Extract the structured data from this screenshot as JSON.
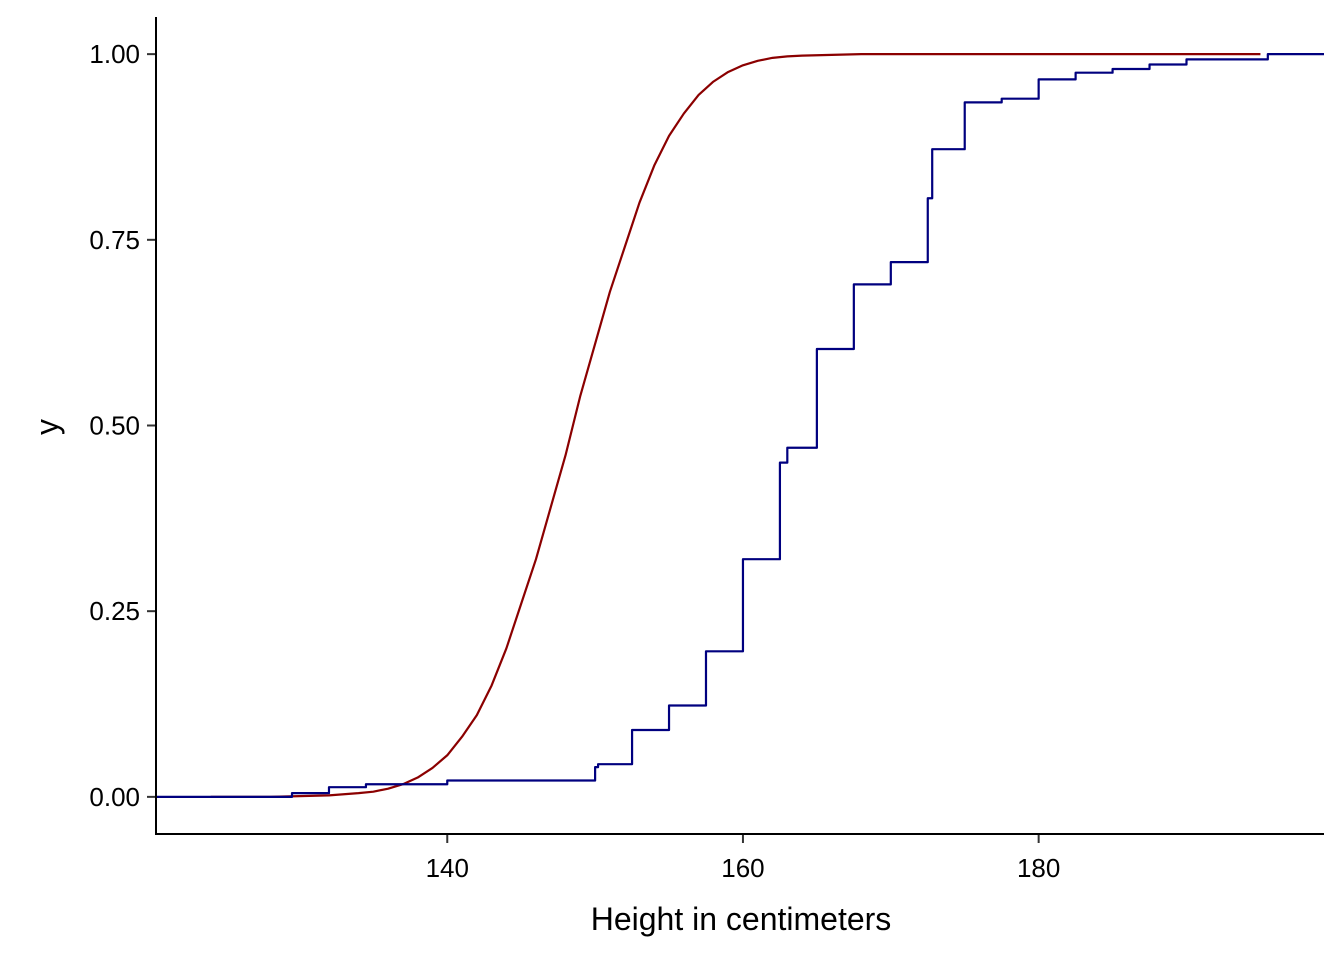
{
  "chart_data": {
    "type": "line",
    "title": "",
    "xlabel": "Height in centimeters",
    "ylabel": "y",
    "xlim": [
      120.3,
      199.3
    ],
    "ylim": [
      -0.05,
      1.05
    ],
    "x_ticks": [
      140,
      160,
      180
    ],
    "x_tick_labels": [
      "140",
      "160",
      "180"
    ],
    "y_ticks": [
      0,
      0.25,
      0.5,
      0.75,
      1
    ],
    "y_tick_labels": [
      "0.00",
      "0.25",
      "0.50",
      "0.75",
      "1.00"
    ],
    "grid": false,
    "legend": "none",
    "series": [
      {
        "style": "smooth",
        "color": "#8b0000",
        "x": [
          124,
          128,
          130,
          132,
          134,
          135,
          136,
          137,
          138,
          139,
          140,
          141,
          142,
          143,
          144,
          145,
          146,
          147,
          148,
          149,
          150,
          151,
          152,
          153,
          154,
          155,
          156,
          157,
          158,
          159,
          160,
          161,
          162,
          163,
          164,
          166,
          168,
          170,
          175,
          195
        ],
        "y": [
          0,
          0,
          0.001,
          0.002,
          0.005,
          0.007,
          0.011,
          0.017,
          0.026,
          0.039,
          0.056,
          0.081,
          0.11,
          0.15,
          0.2,
          0.26,
          0.32,
          0.39,
          0.46,
          0.54,
          0.61,
          0.68,
          0.74,
          0.8,
          0.85,
          0.89,
          0.92,
          0.945,
          0.963,
          0.976,
          0.985,
          0.991,
          0.995,
          0.997,
          0.998,
          0.999,
          1,
          1,
          1,
          1
        ]
      },
      {
        "style": "step",
        "color": "#00007f",
        "x": [
          120.3,
          129.5,
          132,
          134.5,
          140,
          150,
          150.2,
          152.5,
          155,
          157.5,
          160,
          162.5,
          163,
          165,
          167.5,
          170,
          172.5,
          172.8,
          175,
          177.5,
          180,
          182.5,
          185,
          187.5,
          190,
          195.5,
          199.3
        ],
        "y": [
          0,
          0.005,
          0.013,
          0.017,
          0.022,
          0.04,
          0.044,
          0.09,
          0.123,
          0.196,
          0.32,
          0.45,
          0.47,
          0.603,
          0.69,
          0.72,
          0.806,
          0.872,
          0.935,
          0.94,
          0.966,
          0.975,
          0.98,
          0.986,
          0.993,
          1,
          1
        ]
      }
    ]
  }
}
